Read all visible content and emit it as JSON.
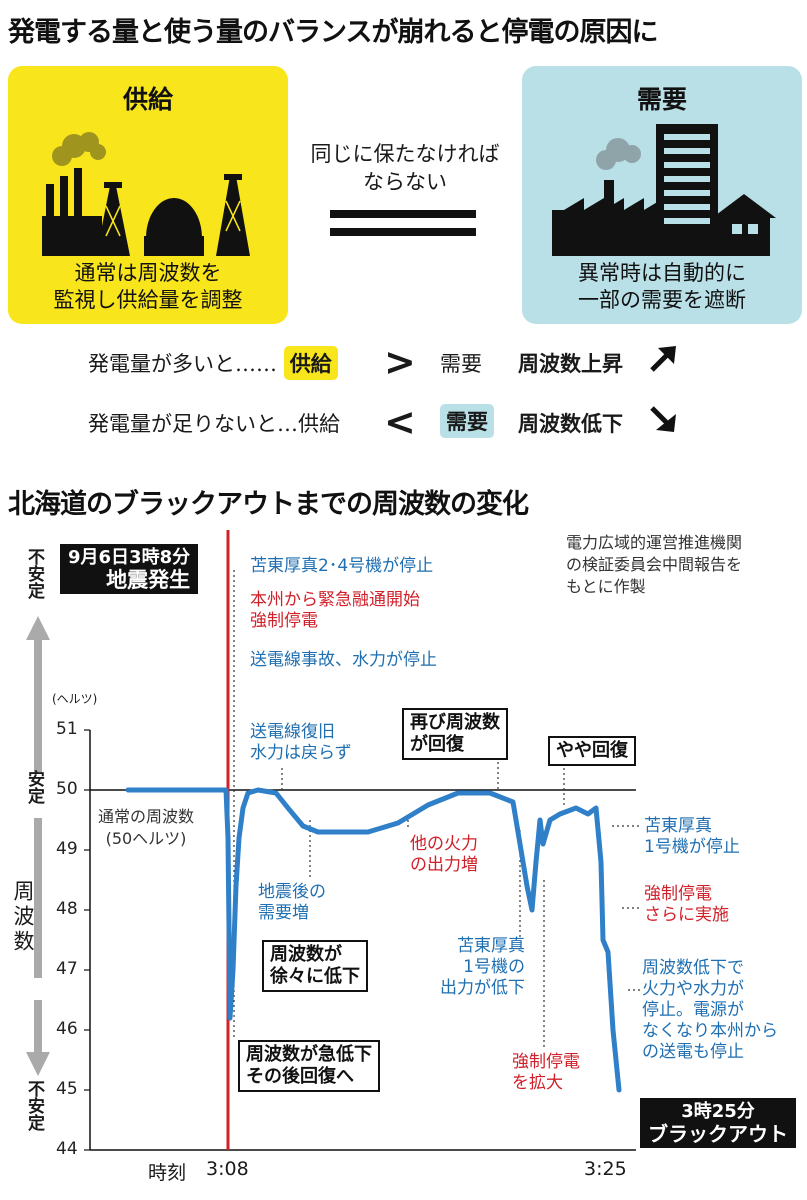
{
  "title1": "発電する量と使う量のバランスが崩れると停電の原因に",
  "supply": {
    "title": "供給",
    "lines": [
      "通常は周波数を",
      "監視し供給量を調整"
    ],
    "color": "#f9e51c"
  },
  "demand": {
    "title": "需要",
    "lines": [
      "異常時は自動的に",
      "一部の需要を遮断"
    ],
    "color": "#b9dfe7"
  },
  "equal_text": [
    "同じに保たなければ",
    "ならない"
  ],
  "compare": [
    {
      "lead": "発電量が多いと……",
      "a": "供給",
      "sign": ">",
      "b": "需要",
      "result": "周波数上昇",
      "arrow": "up"
    },
    {
      "lead": "発電量が足りないと…",
      "a": "供給",
      "sign": "<",
      "b": "需要",
      "result": "周波数低下",
      "arrow": "down"
    }
  ],
  "title2": "北海道のブラックアウトまでの周波数の変化",
  "source": [
    "電力広域的運営推進機関",
    "の検証委員会中間報告を",
    "もとに作製"
  ],
  "axis": {
    "unit": "(ヘルツ)",
    "stable_top": "不安定",
    "stable_mid": "安定",
    "stable_bottom": "不安定",
    "ylabel": "周波数",
    "xlabel": "時刻",
    "x_start": "3:08",
    "x_end": "3:25"
  },
  "normal_label": [
    "通常の周波数",
    "(50ヘルツ)"
  ],
  "event_quake": [
    "9月6日3時8分",
    "地震発生"
  ],
  "blackout": [
    "3時25分",
    "ブラックアウト"
  ],
  "annotations": {
    "tomato24": "苫東厚真2･4号機が停止",
    "emergency": [
      "本州から緊急融通開始",
      "強制停電"
    ],
    "line_accident": "送電線事故、水力が停止",
    "recover_line": [
      "送電線復旧",
      "水力は戻らず"
    ],
    "quake_demand": [
      "地震後の",
      "需要増"
    ],
    "other_thermal": [
      "他の火力",
      "の出力増"
    ],
    "tomato1_down": [
      "苫東厚真",
      "1号機の",
      "出力が低下"
    ],
    "forced_expand": [
      "強制停電",
      "を拡大"
    ],
    "tomato1_stop": [
      "苫東厚真",
      "1号機が停止"
    ],
    "forced_more": [
      "強制停電",
      "さらに実施"
    ],
    "final": [
      "周波数低下で",
      "火力や水力が",
      "停止。電源が",
      "なくなり本州から",
      "の送電も停止"
    ]
  },
  "callouts": {
    "gradual": [
      "周波数が",
      "徐々に低下"
    ],
    "sharp": [
      "周波数が急低下",
      "その後回復へ"
    ],
    "recover_again": [
      "再び周波数",
      "が回復"
    ],
    "slight": "やや回復"
  },
  "chart_data": {
    "type": "line",
    "title": "北海道のブラックアウトまでの周波数の変化",
    "xlabel": "時刻",
    "ylabel": "周波数",
    "ylim": [
      44,
      51
    ],
    "yticks": [
      51,
      50,
      49,
      48,
      47,
      46,
      45,
      44
    ],
    "x_range": [
      "3:08",
      "3:25"
    ],
    "reference_line": 50,
    "series": [
      {
        "values": [
          [
            -100,
            50.0
          ],
          [
            -20,
            50.0
          ],
          [
            -2,
            50.0
          ],
          [
            0,
            49.2
          ],
          [
            2,
            46.2
          ],
          [
            5,
            47.0
          ],
          [
            8,
            48.4
          ],
          [
            11,
            49.2
          ],
          [
            15,
            49.7
          ],
          [
            20,
            49.95
          ],
          [
            30,
            50.0
          ],
          [
            48,
            49.95
          ],
          [
            60,
            49.7
          ],
          [
            75,
            49.4
          ],
          [
            90,
            49.3
          ],
          [
            110,
            49.3
          ],
          [
            140,
            49.3
          ],
          [
            170,
            49.45
          ],
          [
            200,
            49.75
          ],
          [
            230,
            49.95
          ],
          [
            262,
            49.95
          ],
          [
            285,
            49.8
          ],
          [
            292,
            49.1
          ],
          [
            299,
            48.4
          ],
          [
            304,
            48.0
          ],
          [
            308,
            48.8
          ],
          [
            312,
            49.5
          ],
          [
            315,
            49.1
          ],
          [
            322,
            49.5
          ],
          [
            332,
            49.6
          ],
          [
            348,
            49.7
          ],
          [
            360,
            49.6
          ],
          [
            368,
            49.7
          ],
          [
            373,
            48.8
          ],
          [
            375,
            47.5
          ],
          [
            380,
            47.3
          ],
          [
            385,
            46.0
          ],
          [
            391,
            45.0
          ]
        ]
      }
    ]
  }
}
